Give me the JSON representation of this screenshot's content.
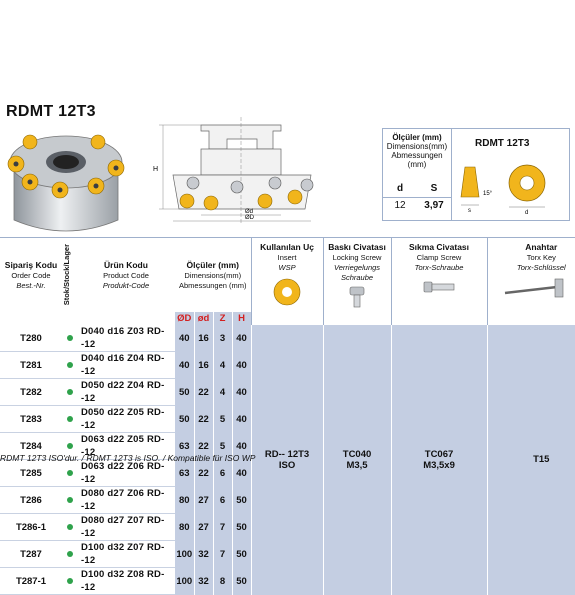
{
  "title": "RDMT 12T3",
  "insert_box": {
    "heading_bold": "Ölçüler (mm)",
    "heading_line2": "Dimensions(mm)",
    "heading_line3": "Abmessungen",
    "heading_line4": "(mm)",
    "col_d": "d",
    "col_s": "S",
    "val_d": "12",
    "val_s": "3,97",
    "insert_name": "RDMT 12T3",
    "angle_label": "15°",
    "s_label": "s",
    "d_label": "d"
  },
  "tech_drawing": {
    "h_label": "H",
    "phid_label": "Ød",
    "phiD_label": "ØD"
  },
  "table": {
    "headers": {
      "order_tr": "Sipariş Kodu",
      "order_en": "Order Code",
      "order_de": "Best.-Nr.",
      "stock": "Stok/Stock/Lager",
      "product_tr": "Ürün Kodu",
      "product_en": "Product Code",
      "product_de": "Produkt-Code",
      "dims_tr": "Ölçüler (mm)",
      "dims_en": "Dimensions(mm)",
      "dims_de": "Abmessungen (mm)",
      "insert_tr": "Kullanılan Uç",
      "insert_en": "Insert",
      "insert_de": "WSP",
      "lockscrew_tr": "Baskı Civatası",
      "lockscrew_en": "Locking Screw",
      "lockscrew_de": "Verriegelungs Schraube",
      "clampscrew_tr": "Sıkma Civatası",
      "clampscrew_en": "Clamp Screw",
      "clampscrew_de": "Torx-Schraube",
      "key_tr": "Anahtar",
      "key_en": "Torx Key",
      "key_de": "Torx-Schlüssel",
      "col_D": "ØD",
      "col_d": "ød",
      "col_Z": "Z",
      "col_H": "H"
    },
    "rows": [
      {
        "code": "T280",
        "product": "D040 d16 Z03 RD--12",
        "D": "40",
        "d": "16",
        "Z": "3",
        "H": "40"
      },
      {
        "code": "T281",
        "product": "D040 d16 Z04 RD--12",
        "D": "40",
        "d": "16",
        "Z": "4",
        "H": "40"
      },
      {
        "code": "T282",
        "product": "D050 d22 Z04 RD--12",
        "D": "50",
        "d": "22",
        "Z": "4",
        "H": "40"
      },
      {
        "code": "T283",
        "product": "D050 d22 Z05 RD--12",
        "D": "50",
        "d": "22",
        "Z": "5",
        "H": "40"
      },
      {
        "code": "T284",
        "product": "D063 d22 Z05 RD--12",
        "D": "63",
        "d": "22",
        "Z": "5",
        "H": "40"
      },
      {
        "code": "T285",
        "product": "D063 d22 Z06 RD--12",
        "D": "63",
        "d": "22",
        "Z": "6",
        "H": "40"
      },
      {
        "code": "T286",
        "product": "D080 d27 Z06 RD--12",
        "D": "80",
        "d": "27",
        "Z": "6",
        "H": "50"
      },
      {
        "code": "T286-1",
        "product": "D080 d27 Z07 RD--12",
        "D": "80",
        "d": "27",
        "Z": "7",
        "H": "50"
      },
      {
        "code": "T287",
        "product": "D100 d32 Z07 RD--12",
        "D": "100",
        "d": "32",
        "Z": "7",
        "H": "50"
      },
      {
        "code": "T287-1",
        "product": "D100 d32 Z08 RD--12",
        "D": "100",
        "d": "32",
        "Z": "8",
        "H": "50"
      }
    ],
    "accessories": {
      "insert_line1": "RD-- 12T3",
      "insert_line2": "ISO",
      "lockscrew_line1": "TC040",
      "lockscrew_line2": "M3,5",
      "clampscrew_line1": "TC067",
      "clampscrew_line2": "M3,5x9",
      "key": "T15"
    }
  },
  "footnote": "RDMT 12T3 ISO'dur. / RDMT 12T3 is ISO. / Kompatible für ISO WP",
  "colors": {
    "accent_bg": "#c4cee2",
    "stock_dot": "#2fa24b",
    "dim_header": "#d32020",
    "insert_gold": "#f1b51c"
  }
}
